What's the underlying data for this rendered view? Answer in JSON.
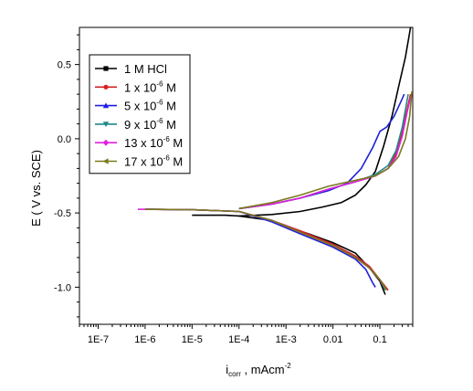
{
  "chart_data": {
    "type": "line",
    "xscale": "log",
    "xlim": [
      4e-08,
      0.5
    ],
    "ylim": [
      -1.25,
      0.75
    ],
    "xlabel_main": "i",
    "xlabel_sub": "corr",
    "xlabel_rest": " , mAcm",
    "xlabel_sup": "-2",
    "ylabel": "E ( V vs. SCE)",
    "x_ticks": [
      {
        "value": 1e-07,
        "label": "1E-7"
      },
      {
        "value": 1e-06,
        "label": "1E-6"
      },
      {
        "value": 1e-05,
        "label": "1E-5"
      },
      {
        "value": 0.0001,
        "label": "1E-4"
      },
      {
        "value": 0.001,
        "label": "1E-3"
      },
      {
        "value": 0.01,
        "label": "0.01"
      },
      {
        "value": 0.1,
        "label": "0.1"
      }
    ],
    "y_ticks": [
      {
        "value": 0.5,
        "label": "0.5"
      },
      {
        "value": 0.0,
        "label": "0.0"
      },
      {
        "value": -0.5,
        "label": "-0.5"
      },
      {
        "value": -1.0,
        "label": "-1.0"
      }
    ],
    "legend_position": "top-left",
    "series": [
      {
        "name": "1 M HCl",
        "name_main": "1 M HCl",
        "name_sup": "",
        "name_rest": "",
        "color": "#000000",
        "marker": "square",
        "cathodic": [
          [
            1e-05,
            -0.515
          ],
          [
            5e-05,
            -0.515
          ],
          [
            0.0001,
            -0.52
          ],
          [
            0.0005,
            -0.55
          ],
          [
            0.001,
            -0.59
          ],
          [
            0.003,
            -0.64
          ],
          [
            0.01,
            -0.7
          ],
          [
            0.03,
            -0.77
          ],
          [
            0.06,
            -0.87
          ],
          [
            0.1,
            -0.96
          ],
          [
            0.13,
            -1.05
          ]
        ],
        "anodic": [
          [
            0.0001,
            -0.52
          ],
          [
            0.0005,
            -0.51
          ],
          [
            0.002,
            -0.49
          ],
          [
            0.006,
            -0.46
          ],
          [
            0.015,
            -0.43
          ],
          [
            0.03,
            -0.38
          ],
          [
            0.05,
            -0.31
          ],
          [
            0.08,
            -0.22
          ],
          [
            0.12,
            -0.05
          ],
          [
            0.18,
            0.15
          ],
          [
            0.25,
            0.35
          ],
          [
            0.35,
            0.55
          ],
          [
            0.45,
            0.75
          ]
        ]
      },
      {
        "name": "1 x 10-6 M",
        "name_main": "1 x 10",
        "name_sup": "-6",
        "name_rest": " M",
        "color": "#d62020",
        "marker": "circle",
        "cathodic": [
          [
            1e-06,
            -0.475
          ],
          [
            1e-05,
            -0.478
          ],
          [
            0.0001,
            -0.49
          ],
          [
            0.0005,
            -0.55
          ],
          [
            0.002,
            -0.62
          ],
          [
            0.01,
            -0.71
          ],
          [
            0.03,
            -0.79
          ],
          [
            0.06,
            -0.86
          ],
          [
            0.1,
            -0.95
          ],
          [
            0.15,
            -1.02
          ]
        ],
        "anodic": [
          [
            0.0001,
            -0.47
          ],
          [
            0.0005,
            -0.44
          ],
          [
            0.002,
            -0.4
          ],
          [
            0.008,
            -0.34
          ],
          [
            0.03,
            -0.29
          ],
          [
            0.08,
            -0.25
          ],
          [
            0.15,
            -0.2
          ],
          [
            0.22,
            -0.1
          ],
          [
            0.3,
            0.05
          ],
          [
            0.38,
            0.2
          ],
          [
            0.45,
            0.3
          ]
        ]
      },
      {
        "name": "5 x 10-6 M",
        "name_main": "5 x 10",
        "name_sup": "-6",
        "name_rest": " M",
        "color": "#1f1fe0",
        "marker": "triangle",
        "cathodic": [
          [
            1e-06,
            -0.475
          ],
          [
            1e-05,
            -0.478
          ],
          [
            0.0001,
            -0.49
          ],
          [
            0.0005,
            -0.56
          ],
          [
            0.002,
            -0.64
          ],
          [
            0.01,
            -0.73
          ],
          [
            0.03,
            -0.81
          ],
          [
            0.05,
            -0.88
          ],
          [
            0.07,
            -0.97
          ],
          [
            0.08,
            -1.0
          ]
        ],
        "anodic": [
          [
            0.0001,
            -0.47
          ],
          [
            0.0005,
            -0.44
          ],
          [
            0.002,
            -0.4
          ],
          [
            0.008,
            -0.35
          ],
          [
            0.02,
            -0.3
          ],
          [
            0.04,
            -0.2
          ],
          [
            0.07,
            -0.06
          ],
          [
            0.1,
            0.05
          ],
          [
            0.14,
            0.08
          ],
          [
            0.2,
            0.15
          ],
          [
            0.28,
            0.25
          ],
          [
            0.33,
            0.3
          ]
        ]
      },
      {
        "name": "9 x 10-6 M",
        "name_main": "9 x 10",
        "name_sup": "-6",
        "name_rest": " M",
        "color": "#1e8a8a",
        "marker": "triangle-down",
        "cathodic": [
          [
            1e-06,
            -0.475
          ],
          [
            1e-05,
            -0.478
          ],
          [
            0.0001,
            -0.49
          ],
          [
            0.0005,
            -0.55
          ],
          [
            0.002,
            -0.63
          ],
          [
            0.01,
            -0.72
          ],
          [
            0.03,
            -0.8
          ],
          [
            0.06,
            -0.87
          ],
          [
            0.1,
            -0.95
          ],
          [
            0.13,
            -1.02
          ]
        ],
        "anodic": [
          [
            0.0001,
            -0.47
          ],
          [
            0.0005,
            -0.44
          ],
          [
            0.002,
            -0.4
          ],
          [
            0.008,
            -0.34
          ],
          [
            0.03,
            -0.29
          ],
          [
            0.08,
            -0.24
          ],
          [
            0.15,
            -0.18
          ],
          [
            0.22,
            -0.08
          ],
          [
            0.3,
            0.08
          ],
          [
            0.36,
            0.22
          ],
          [
            0.4,
            0.3
          ]
        ]
      },
      {
        "name": "13 x 10-6 M",
        "name_main": "13 x 10",
        "name_sup": "-6",
        "name_rest": " M",
        "color": "#e020e0",
        "marker": "diamond",
        "cathodic": [
          [
            7e-07,
            -0.475
          ],
          [
            1e-05,
            -0.478
          ],
          [
            0.0001,
            -0.49
          ],
          [
            0.0005,
            -0.55
          ],
          [
            0.002,
            -0.63
          ],
          [
            0.01,
            -0.72
          ],
          [
            0.03,
            -0.8
          ],
          [
            0.06,
            -0.87
          ],
          [
            0.1,
            -0.95
          ],
          [
            0.14,
            -1.02
          ]
        ],
        "anodic": [
          [
            0.0001,
            -0.47
          ],
          [
            0.0005,
            -0.44
          ],
          [
            0.002,
            -0.4
          ],
          [
            0.008,
            -0.34
          ],
          [
            0.03,
            -0.29
          ],
          [
            0.08,
            -0.25
          ],
          [
            0.15,
            -0.2
          ],
          [
            0.22,
            -0.12
          ],
          [
            0.3,
            0.02
          ],
          [
            0.38,
            0.18
          ],
          [
            0.45,
            0.28
          ]
        ]
      },
      {
        "name": "17 x 10-6 M",
        "name_main": "17 x 10",
        "name_sup": "-6",
        "name_rest": " M",
        "color": "#7a7a1e",
        "marker": "triangle-left",
        "cathodic": [
          [
            1e-06,
            -0.475
          ],
          [
            1e-05,
            -0.478
          ],
          [
            0.0001,
            -0.49
          ],
          [
            0.0005,
            -0.55
          ],
          [
            0.002,
            -0.63
          ],
          [
            0.01,
            -0.72
          ],
          [
            0.03,
            -0.8
          ],
          [
            0.06,
            -0.87
          ],
          [
            0.1,
            -0.95
          ],
          [
            0.14,
            -1.02
          ]
        ],
        "anodic": [
          [
            0.0001,
            -0.47
          ],
          [
            0.0005,
            -0.43
          ],
          [
            0.002,
            -0.38
          ],
          [
            0.008,
            -0.32
          ],
          [
            0.03,
            -0.28
          ],
          [
            0.08,
            -0.25
          ],
          [
            0.15,
            -0.2
          ],
          [
            0.25,
            -0.12
          ],
          [
            0.35,
            0.0
          ],
          [
            0.43,
            0.15
          ],
          [
            0.48,
            0.32
          ]
        ]
      }
    ]
  }
}
